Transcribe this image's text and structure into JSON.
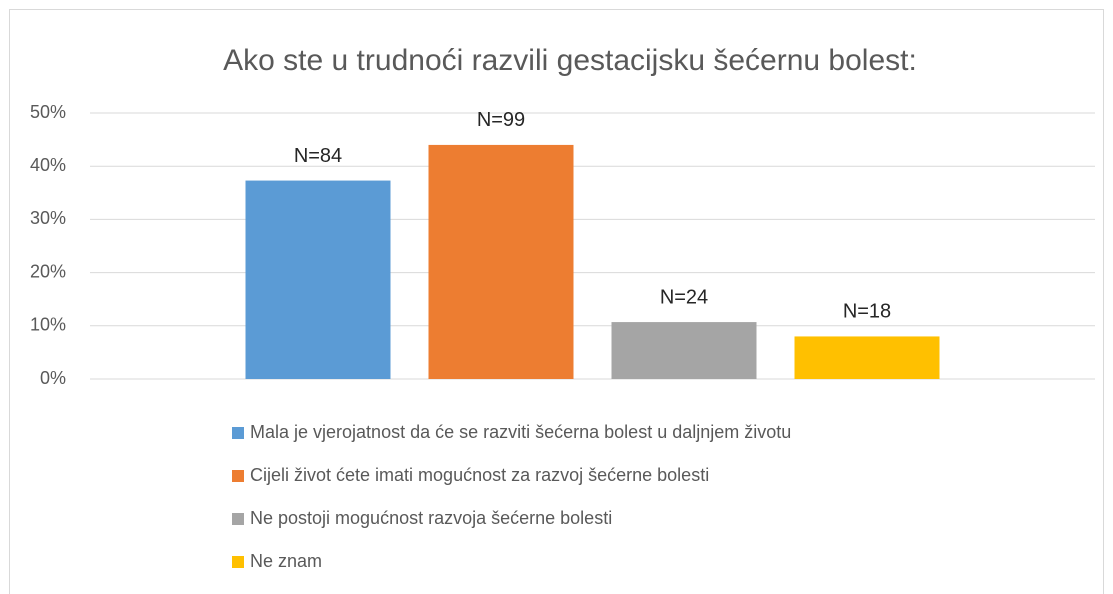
{
  "chart_data": {
    "type": "bar",
    "title": "Ako ste u trudnoći razvili gestacijsku šećernu bolest:",
    "series": [
      {
        "name": "Mala je vjerojatnost da će se razviti šećerna bolest u daljnjem životu",
        "color": "#5b9bd5",
        "values": [
          37.3
        ],
        "count_labels": [
          "N=84"
        ]
      },
      {
        "name": "Cijeli život ćete imati mogućnost za razvoj šećerne bolesti",
        "color": "#ed7d31",
        "values": [
          44.0
        ],
        "count_labels": [
          "N=99"
        ]
      },
      {
        "name": "Ne postoji mogućnost razvoja šećerne bolesti",
        "color": "#a5a5a5",
        "values": [
          10.7
        ],
        "count_labels": [
          "N=24"
        ]
      },
      {
        "name": "Ne znam",
        "color": "#ffc000",
        "values": [
          8.0
        ],
        "count_labels": [
          "N=18"
        ]
      }
    ],
    "ylim": [
      0,
      50
    ],
    "yticks": [
      {
        "value": 0,
        "label": "0%"
      },
      {
        "value": 10,
        "label": "10%"
      },
      {
        "value": 20,
        "label": "20%"
      },
      {
        "value": 30,
        "label": "30%"
      },
      {
        "value": 40,
        "label": "40%"
      },
      {
        "value": 50,
        "label": "50%"
      }
    ],
    "grid": true,
    "legend": "bottom"
  }
}
